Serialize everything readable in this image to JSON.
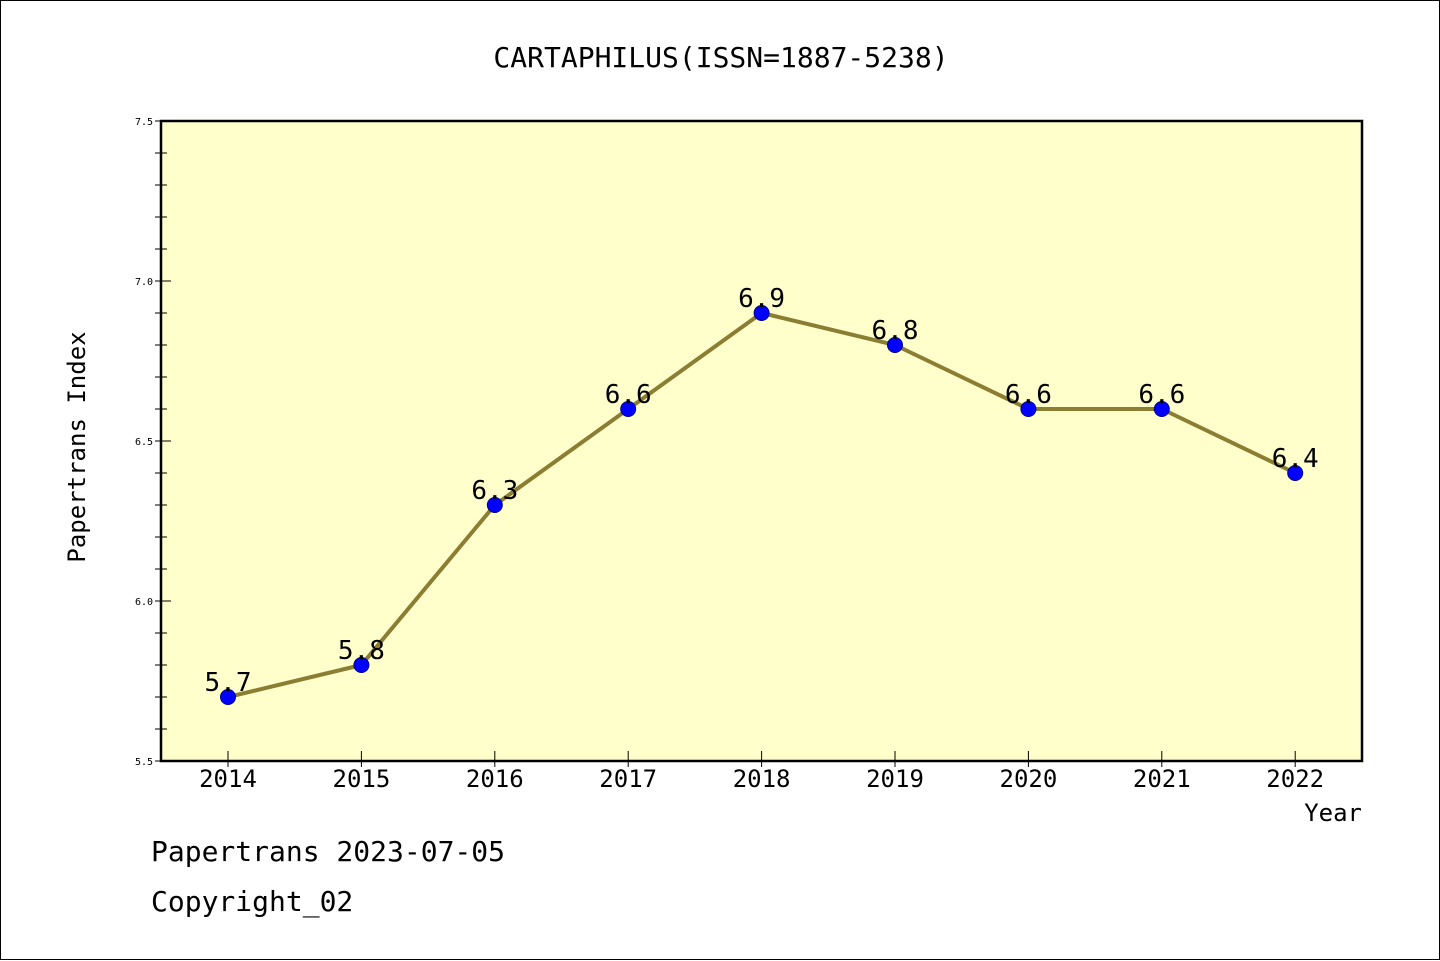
{
  "chart_data": {
    "type": "line",
    "title": "CARTAPHILUS(ISSN=1887-5238)",
    "xlabel": "Year",
    "ylabel": "Papertrans Index",
    "categories": [
      "2014",
      "2015",
      "2016",
      "2017",
      "2018",
      "2019",
      "2020",
      "2021",
      "2022"
    ],
    "series": [
      {
        "values": [
          5.7,
          5.8,
          6.3,
          6.6,
          6.9,
          6.8,
          6.6,
          6.6,
          6.4
        ]
      }
    ],
    "data_labels": [
      "5.7",
      "5.8",
      "6.3",
      "6.6",
      "6.9",
      "6.8",
      "6.6",
      "6.6",
      "6.4"
    ],
    "ylim": [
      5.5,
      7.5
    ],
    "y_ticks": [
      "5.5",
      "6.0",
      "6.5",
      "7.0",
      "7.5"
    ],
    "y_minor_step": 0.1,
    "grid": false,
    "legend": "none",
    "colors": {
      "plot_background": "#ffffcc",
      "line": "#8b7d32",
      "marker": "#0000ff",
      "marker_edge": "#00008b",
      "axes": "#000000",
      "text": "#000000"
    }
  },
  "footer": {
    "date_line": "Papertrans 2023-07-05",
    "copyright": "Copyright_02"
  }
}
